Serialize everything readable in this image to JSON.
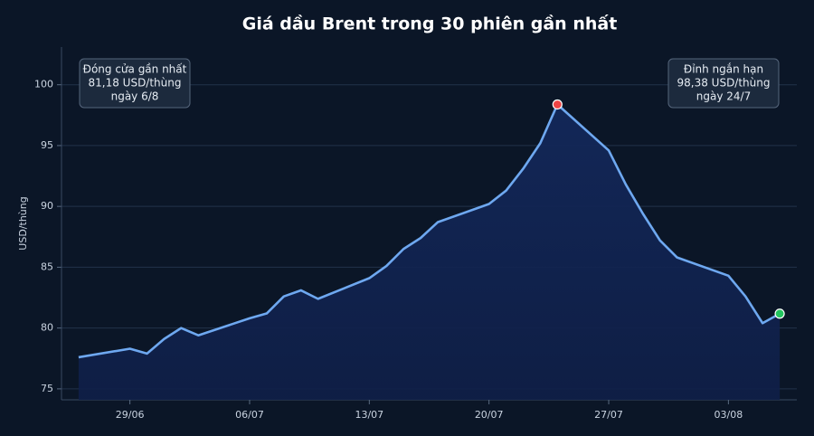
{
  "chart_data": {
    "type": "line",
    "title": "Giá dầu Brent trong 30 phiên gần nhất",
    "y_label": "USD/thùng",
    "x": [
      "26/06",
      "29/06",
      "30/06",
      "01/07",
      "02/07",
      "03/07",
      "06/07",
      "07/07",
      "08/07",
      "09/07",
      "10/07",
      "13/07",
      "14/07",
      "15/07",
      "16/07",
      "17/07",
      "20/07",
      "21/07",
      "22/07",
      "23/07",
      "24/07",
      "27/07",
      "28/07",
      "29/07",
      "30/07",
      "31/07",
      "03/08",
      "04/08",
      "05/08",
      "06/08"
    ],
    "series": [
      {
        "name": "Brent",
        "color": "#6ea8f0",
        "values": [
          77.6,
          78.3,
          77.9,
          79.1,
          80.0,
          79.4,
          80.8,
          81.2,
          82.6,
          83.1,
          82.4,
          84.1,
          85.1,
          86.5,
          87.4,
          88.7,
          90.2,
          91.3,
          93.1,
          95.2,
          98.38,
          94.6,
          91.8,
          89.4,
          87.2,
          85.8,
          84.3,
          82.6,
          80.4,
          81.18
        ]
      }
    ],
    "xlim": [
      "25/06",
      "07/08"
    ],
    "xticks": [
      "29/06",
      "06/07",
      "13/07",
      "20/07",
      "27/07",
      "03/08"
    ],
    "ylim": [
      74.1,
      103.1
    ],
    "yticks": [
      75,
      80,
      85,
      90,
      95,
      100
    ],
    "grid": true,
    "highlight_points": [
      {
        "index": 20,
        "color": "#ef4444"
      },
      {
        "index": 29,
        "color": "#22c55e"
      }
    ],
    "annotations": [
      {
        "lines": [
          "Đóng cửa gần nhất",
          "81,18 USD/thùng",
          "ngày 6/8"
        ]
      },
      {
        "lines": [
          "Đỉnh ngắn hạn",
          "98,38 USD/thùng",
          "ngày 24/7"
        ]
      }
    ]
  }
}
